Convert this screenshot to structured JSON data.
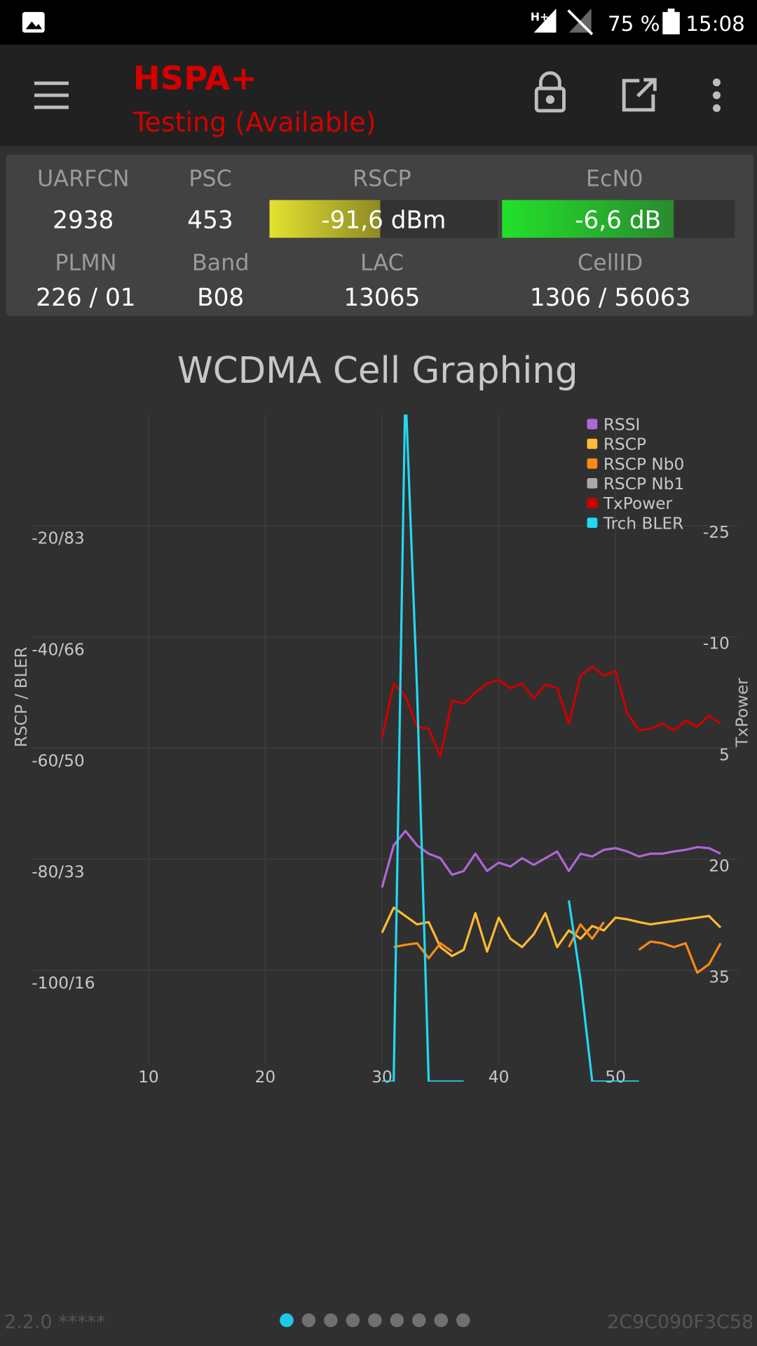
{
  "status_bar": {
    "network": "H+",
    "battery": "75 %",
    "time": "15:08"
  },
  "app_bar": {
    "title": "HSPA+",
    "subtitle": "Testing (Available)"
  },
  "cell_info": {
    "uarfcn": {
      "label": "UARFCN",
      "value": "2938"
    },
    "psc": {
      "label": "PSC",
      "value": "453"
    },
    "rscp": {
      "label": "RSCP",
      "value": "-91,6 dBm"
    },
    "ecn0": {
      "label": "EcN0",
      "value": "-6,6 dB"
    },
    "plmn": {
      "label": "PLMN",
      "value": "226 / 01"
    },
    "band": {
      "label": "Band",
      "value": "B08"
    },
    "lac": {
      "label": "LAC",
      "value": "13065"
    },
    "cellid": {
      "label": "CellID",
      "value": "1306 / 56063"
    }
  },
  "chart_data": {
    "type": "line",
    "title": "WCDMA Cell Graphing",
    "ylabel": "RSCP / BLER",
    "y2label": "TxPower",
    "x": [
      30,
      31,
      32,
      33,
      34,
      35,
      36,
      37,
      38,
      39,
      40,
      41,
      42,
      43,
      44,
      45,
      46,
      47,
      48,
      49,
      50,
      51,
      52,
      53,
      54,
      55,
      56,
      57,
      58,
      59
    ],
    "xlim": [
      0,
      60.5
    ],
    "xticks": [
      10,
      20,
      30,
      40,
      50
    ],
    "ylim": [
      -120,
      0
    ],
    "yticks": [
      {
        "value": -20,
        "label": "-20/83"
      },
      {
        "value": -40,
        "label": "-40/66"
      },
      {
        "value": -60,
        "label": "-60/50"
      },
      {
        "value": -80,
        "label": "-80/33"
      },
      {
        "value": -100,
        "label": "-100/16"
      }
    ],
    "y2lim": [
      50,
      -40
    ],
    "y2ticks": [
      -25,
      -10,
      5,
      20,
      35
    ],
    "grid": true,
    "legend": "upper right",
    "series": [
      {
        "name": "RSSI",
        "color": "#b266d6",
        "values": [
          -85.1,
          -77.5,
          -74.9,
          -77.5,
          -79.0,
          -79.8,
          -82.8,
          -82.1,
          -79.0,
          -82.1,
          -80.6,
          -81.3,
          -79.8,
          -81.0,
          -79.8,
          -78.6,
          -82.1,
          -79.0,
          -79.5,
          -78.3,
          -78.0,
          -78.6,
          -79.5,
          -79.0,
          -79.0,
          -78.6,
          -78.3,
          -77.8,
          -78.0,
          -79.0
        ]
      },
      {
        "name": "RSCP",
        "color": "#ffbb33",
        "values": [
          -93.2,
          -88.7,
          -90.2,
          -91.7,
          -91.3,
          -95.8,
          -97.4,
          -96.3,
          -89.7,
          -96.6,
          -90.5,
          -94.3,
          -95.8,
          -93.5,
          -89.7,
          -95.8,
          -92.8,
          -94.3,
          -92.0,
          -92.8,
          -90.5,
          -90.8,
          -91.3,
          -91.7,
          -91.4,
          -91.1,
          -90.8,
          -90.5,
          -90.2,
          -92.3
        ]
      },
      {
        "name": "RSCP Nb0",
        "color": "#ff8a14",
        "values": [
          null,
          -95.8,
          -95.4,
          -95.1,
          -97.8,
          -95.1,
          -96.6,
          null,
          null,
          null,
          null,
          null,
          null,
          null,
          null,
          null,
          -95.8,
          -91.7,
          -94.3,
          -91.3,
          null,
          null,
          -96.3,
          -94.8,
          -95.1,
          -95.8,
          -95.1,
          -100.4,
          -98.9,
          -95.1
        ]
      },
      {
        "name": "RSCP Nb1",
        "color": "#aaaaaa",
        "values": [
          null,
          null,
          null,
          null,
          null,
          null,
          null,
          null,
          null,
          null,
          null,
          null,
          null,
          null,
          null,
          null,
          null,
          null,
          null,
          null,
          null,
          null,
          null,
          null,
          null,
          null,
          null,
          null,
          null,
          null
        ]
      },
      {
        "name": "TxPower",
        "color": "#cc0000",
        "axis": "y2",
        "values": [
          3.6,
          -3.7,
          -2.0,
          2.1,
          2.4,
          6.1,
          -1.4,
          -1.0,
          -2.5,
          -3.7,
          -4.2,
          -3.1,
          -3.7,
          -1.7,
          -3.6,
          -3.1,
          1.7,
          -4.8,
          -6.0,
          -4.8,
          -5.4,
          0.3,
          2.6,
          2.4,
          1.7,
          2.6,
          1.3,
          2.1,
          0.6,
          1.7
        ]
      },
      {
        "name": "Trch BLER",
        "color": "#22d8f2",
        "values": [
          -120,
          -120,
          5,
          -49.4,
          -120,
          -120,
          -120,
          -120,
          null,
          null,
          null,
          null,
          null,
          null,
          null,
          null,
          -87.4,
          -101.7,
          -120,
          -120,
          -120,
          -120,
          -120,
          null,
          null,
          null,
          null,
          null,
          null,
          null
        ]
      }
    ]
  },
  "footer": {
    "version": "2.2.0 *****",
    "device_id": "2C9C090F3C58",
    "pages": 9,
    "current_page": 0
  }
}
